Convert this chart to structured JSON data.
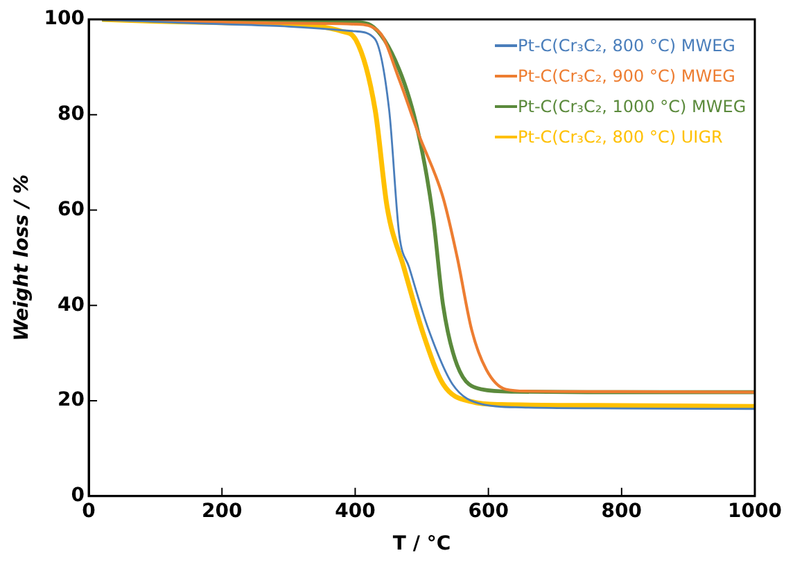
{
  "chart_data": {
    "type": "line",
    "xlabel": "T / °C",
    "ylabel": "Weight loss / %",
    "xlim": [
      0,
      1000
    ],
    "xticks": [
      0,
      200,
      400,
      600,
      800,
      1000
    ],
    "ylim": [
      0,
      100
    ],
    "yticks": [
      0,
      20,
      40,
      60,
      80,
      100
    ],
    "grid": false,
    "legend": "top right",
    "marker": "none",
    "line_style": "solid",
    "series": [
      {
        "name": "Pt-C(Cr₃C₂, 800 °C) MWEG",
        "color": "#4a7ebb",
        "x": [
          20,
          100,
          200,
          300,
          400,
          429,
          451,
          466,
          481,
          510,
          546,
          590,
          650,
          800,
          1000
        ],
        "values": [
          100,
          99.5,
          99,
          98.5,
          97.5,
          96,
          81,
          55,
          48,
          35,
          23.5,
          19.3,
          18.6,
          18.4,
          18.3
        ]
      },
      {
        "name": "Pt-C(Cr₃C₂, 900 °C) MWEG",
        "color": "#ed7d31",
        "x": [
          20,
          100,
          200,
          300,
          400,
          437,
          466,
          495,
          532,
          553,
          575,
          597,
          626,
          660,
          800,
          1000
        ],
        "values": [
          100,
          99.7,
          99.4,
          99.2,
          99,
          97.2,
          87.4,
          76,
          62.6,
          50.2,
          34.8,
          26.5,
          22.4,
          22,
          21.9,
          21.8
        ]
      },
      {
        "name": "Pt-C(Cr₃C₂, 1000 °C) MWEG",
        "color": "#5b8a3c",
        "x": [
          20,
          100,
          200,
          300,
          400,
          423,
          466,
          495,
          517,
          532,
          553,
          590,
          640,
          800,
          1000
        ],
        "values": [
          100,
          99.8,
          99.6,
          99.5,
          99.4,
          98.8,
          89.5,
          76,
          58.5,
          40,
          27.5,
          22.4,
          21.9,
          21.8,
          21.8
        ]
      },
      {
        "name": "Pt-C(Cr₃C₂, 800 °C) UIGR",
        "color": "#ffc000",
        "x": [
          20,
          100,
          200,
          300,
          380,
          401,
          430,
          448,
          473,
          503,
          532,
          575,
          620,
          800,
          1000
        ],
        "values": [
          100,
          99.6,
          99.3,
          99,
          97.5,
          95.7,
          81,
          60.6,
          48,
          33.7,
          23.5,
          19.8,
          19.2,
          19,
          18.8
        ]
      }
    ]
  }
}
